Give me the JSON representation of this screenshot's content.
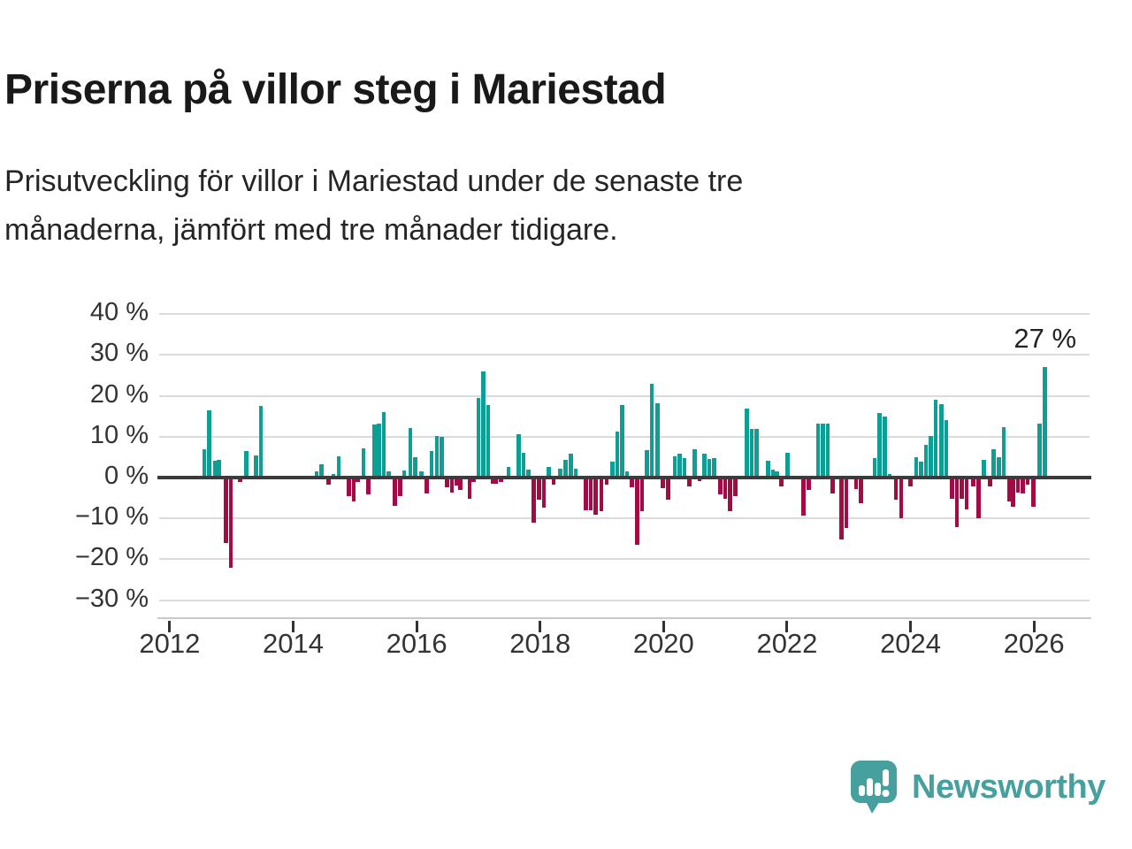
{
  "header": {
    "title": "Priserna på villor steg i Mariestad",
    "subtitle_lines": [
      "Prisutveckling för villor i Mariestad under de senaste tre",
      "månaderna, jämfört med tre månader tidigare."
    ]
  },
  "logo": {
    "text": "Newsworthy",
    "color": "#46a09e",
    "icon": "bar-chart-speech-bubble"
  },
  "colors": {
    "positive_bar": "#0d9e96",
    "negative_bar": "#a40a45",
    "gridline": "#dbdbdb",
    "zero_line": "#3b3b3b",
    "axis_text": "#333333"
  },
  "chart_data": {
    "type": "bar",
    "title": "Prisutveckling för villor i Mariestad",
    "unit": "%",
    "positive_color": "#0d9e96",
    "negative_color": "#a40a45",
    "annotation": {
      "text": "27 %"
    },
    "x_axis": {
      "min": 2011.83,
      "max": 2026.9,
      "ticks": [
        {
          "v": 2012,
          "label": "2012"
        },
        {
          "v": 2014,
          "label": "2014"
        },
        {
          "v": 2016,
          "label": "2016"
        },
        {
          "v": 2018,
          "label": "2018"
        },
        {
          "v": 2020,
          "label": "2020"
        },
        {
          "v": 2022,
          "label": "2022"
        },
        {
          "v": 2024,
          "label": "2024"
        },
        {
          "v": 2026,
          "label": "2026"
        }
      ]
    },
    "y_axis": {
      "ticks": [
        {
          "v": 40,
          "label": "40 %"
        },
        {
          "v": 30,
          "label": "30 %"
        },
        {
          "v": 20,
          "label": "20 %"
        },
        {
          "v": 10,
          "label": "10 %"
        },
        {
          "v": 0,
          "label": "0 %"
        },
        {
          "v": -10,
          "label": "−10 %"
        },
        {
          "v": -20,
          "label": "−20 %"
        },
        {
          "v": -30,
          "label": "−30 %"
        }
      ]
    },
    "series": [
      {
        "x": 2012.56,
        "v": 7
      },
      {
        "x": 2012.64,
        "v": 16.5
      },
      {
        "x": 2012.73,
        "v": 4.2
      },
      {
        "x": 2012.8,
        "v": 4.4
      },
      {
        "x": 2012.91,
        "v": -16
      },
      {
        "x": 2012.99,
        "v": -22
      },
      {
        "x": 2013.14,
        "v": -1
      },
      {
        "x": 2013.24,
        "v": 6.5
      },
      {
        "x": 2013.4,
        "v": 5.5
      },
      {
        "x": 2013.48,
        "v": 17.5
      },
      {
        "x": 2014.38,
        "v": 1.5
      },
      {
        "x": 2014.46,
        "v": 3.3
      },
      {
        "x": 2014.57,
        "v": -1.8
      },
      {
        "x": 2014.65,
        "v": 0.9
      },
      {
        "x": 2014.74,
        "v": 5.1
      },
      {
        "x": 2014.9,
        "v": -4.5
      },
      {
        "x": 2014.98,
        "v": -5.9
      },
      {
        "x": 2015.05,
        "v": -1
      },
      {
        "x": 2015.14,
        "v": 7.2
      },
      {
        "x": 2015.22,
        "v": -4.1
      },
      {
        "x": 2015.32,
        "v": 12.9
      },
      {
        "x": 2015.39,
        "v": 13.3
      },
      {
        "x": 2015.47,
        "v": 16
      },
      {
        "x": 2015.55,
        "v": 1.6
      },
      {
        "x": 2015.65,
        "v": -7
      },
      {
        "x": 2015.73,
        "v": -4.5
      },
      {
        "x": 2015.8,
        "v": 1.7
      },
      {
        "x": 2015.9,
        "v": 12.2
      },
      {
        "x": 2015.98,
        "v": 4.9
      },
      {
        "x": 2016.08,
        "v": 1.5
      },
      {
        "x": 2016.16,
        "v": -3.8
      },
      {
        "x": 2016.24,
        "v": 6.6
      },
      {
        "x": 2016.33,
        "v": 10.2
      },
      {
        "x": 2016.41,
        "v": 9.9
      },
      {
        "x": 2016.49,
        "v": -2.3
      },
      {
        "x": 2016.57,
        "v": -3.6
      },
      {
        "x": 2016.65,
        "v": -2
      },
      {
        "x": 2016.71,
        "v": -3
      },
      {
        "x": 2016.86,
        "v": -5.1
      },
      {
        "x": 2016.92,
        "v": -1
      },
      {
        "x": 2017.0,
        "v": 19.5
      },
      {
        "x": 2017.08,
        "v": 26
      },
      {
        "x": 2017.16,
        "v": 17.8
      },
      {
        "x": 2017.23,
        "v": -1.6
      },
      {
        "x": 2017.29,
        "v": -1.6
      },
      {
        "x": 2017.37,
        "v": -1.1
      },
      {
        "x": 2017.49,
        "v": 2.7
      },
      {
        "x": 2017.65,
        "v": 10.7
      },
      {
        "x": 2017.73,
        "v": 6
      },
      {
        "x": 2017.81,
        "v": 1.9
      },
      {
        "x": 2017.9,
        "v": -11
      },
      {
        "x": 2017.98,
        "v": -5.5
      },
      {
        "x": 2018.06,
        "v": -7.3
      },
      {
        "x": 2018.14,
        "v": 2.5
      },
      {
        "x": 2018.22,
        "v": -1.7
      },
      {
        "x": 2018.33,
        "v": 2.2
      },
      {
        "x": 2018.41,
        "v": 4.3
      },
      {
        "x": 2018.5,
        "v": 5.9
      },
      {
        "x": 2018.58,
        "v": 2.2
      },
      {
        "x": 2018.74,
        "v": -8
      },
      {
        "x": 2018.82,
        "v": -8
      },
      {
        "x": 2018.9,
        "v": -9
      },
      {
        "x": 2018.99,
        "v": -8.2
      },
      {
        "x": 2019.08,
        "v": -1.7
      },
      {
        "x": 2019.17,
        "v": 3.9
      },
      {
        "x": 2019.25,
        "v": 11.2
      },
      {
        "x": 2019.33,
        "v": 17.7
      },
      {
        "x": 2019.41,
        "v": 1.6
      },
      {
        "x": 2019.49,
        "v": -2.4
      },
      {
        "x": 2019.57,
        "v": -16.4
      },
      {
        "x": 2019.65,
        "v": -8.2
      },
      {
        "x": 2019.73,
        "v": 6.8
      },
      {
        "x": 2019.81,
        "v": 23
      },
      {
        "x": 2019.9,
        "v": 18.2
      },
      {
        "x": 2019.99,
        "v": -2.7
      },
      {
        "x": 2020.07,
        "v": -5.4
      },
      {
        "x": 2020.18,
        "v": 5.2
      },
      {
        "x": 2020.26,
        "v": 5.8
      },
      {
        "x": 2020.34,
        "v": 4.8
      },
      {
        "x": 2020.42,
        "v": -2.2
      },
      {
        "x": 2020.5,
        "v": 7
      },
      {
        "x": 2020.58,
        "v": -0.9
      },
      {
        "x": 2020.66,
        "v": 5.9
      },
      {
        "x": 2020.74,
        "v": 4.5
      },
      {
        "x": 2020.82,
        "v": 4.7
      },
      {
        "x": 2020.92,
        "v": -4.2
      },
      {
        "x": 2021.0,
        "v": -5.3
      },
      {
        "x": 2021.08,
        "v": -8.2
      },
      {
        "x": 2021.16,
        "v": -4.6
      },
      {
        "x": 2021.35,
        "v": 16.9
      },
      {
        "x": 2021.43,
        "v": 11.8
      },
      {
        "x": 2021.51,
        "v": 11.9
      },
      {
        "x": 2021.69,
        "v": 4.1
      },
      {
        "x": 2021.77,
        "v": 1.9
      },
      {
        "x": 2021.84,
        "v": 1.5
      },
      {
        "x": 2021.91,
        "v": -2.2
      },
      {
        "x": 2022.01,
        "v": 6.1
      },
      {
        "x": 2022.27,
        "v": -9.3
      },
      {
        "x": 2022.35,
        "v": -3
      },
      {
        "x": 2022.5,
        "v": 13.1
      },
      {
        "x": 2022.58,
        "v": 13.1
      },
      {
        "x": 2022.66,
        "v": 13.1
      },
      {
        "x": 2022.74,
        "v": -4
      },
      {
        "x": 2022.88,
        "v": -15.2
      },
      {
        "x": 2022.96,
        "v": -12.3
      },
      {
        "x": 2023.12,
        "v": -2.9
      },
      {
        "x": 2023.2,
        "v": -6.2
      },
      {
        "x": 2023.42,
        "v": 4.8
      },
      {
        "x": 2023.5,
        "v": 15.8
      },
      {
        "x": 2023.58,
        "v": 14.9
      },
      {
        "x": 2023.66,
        "v": 0.9
      },
      {
        "x": 2023.76,
        "v": -5.5
      },
      {
        "x": 2023.85,
        "v": -10
      },
      {
        "x": 2024.0,
        "v": -2.2
      },
      {
        "x": 2024.09,
        "v": 4.9
      },
      {
        "x": 2024.17,
        "v": 4
      },
      {
        "x": 2024.25,
        "v": 8.1
      },
      {
        "x": 2024.33,
        "v": 10.1
      },
      {
        "x": 2024.41,
        "v": 19
      },
      {
        "x": 2024.5,
        "v": 18
      },
      {
        "x": 2024.58,
        "v": 14
      },
      {
        "x": 2024.67,
        "v": -5.2
      },
      {
        "x": 2024.75,
        "v": -12.2
      },
      {
        "x": 2024.83,
        "v": -5.2
      },
      {
        "x": 2024.91,
        "v": -7.8
      },
      {
        "x": 2025.02,
        "v": -2.2
      },
      {
        "x": 2025.1,
        "v": -10
      },
      {
        "x": 2025.19,
        "v": 4.3
      },
      {
        "x": 2025.29,
        "v": -2.2
      },
      {
        "x": 2025.35,
        "v": 7
      },
      {
        "x": 2025.43,
        "v": 4.9
      },
      {
        "x": 2025.51,
        "v": 12.3
      },
      {
        "x": 2025.6,
        "v": -5.8
      },
      {
        "x": 2025.66,
        "v": -7.2
      },
      {
        "x": 2025.74,
        "v": -3.6
      },
      {
        "x": 2025.82,
        "v": -4
      },
      {
        "x": 2025.9,
        "v": -1.8
      },
      {
        "x": 2025.99,
        "v": -7.2
      },
      {
        "x": 2026.09,
        "v": 13.1
      },
      {
        "x": 2026.18,
        "v": 27
      }
    ]
  }
}
